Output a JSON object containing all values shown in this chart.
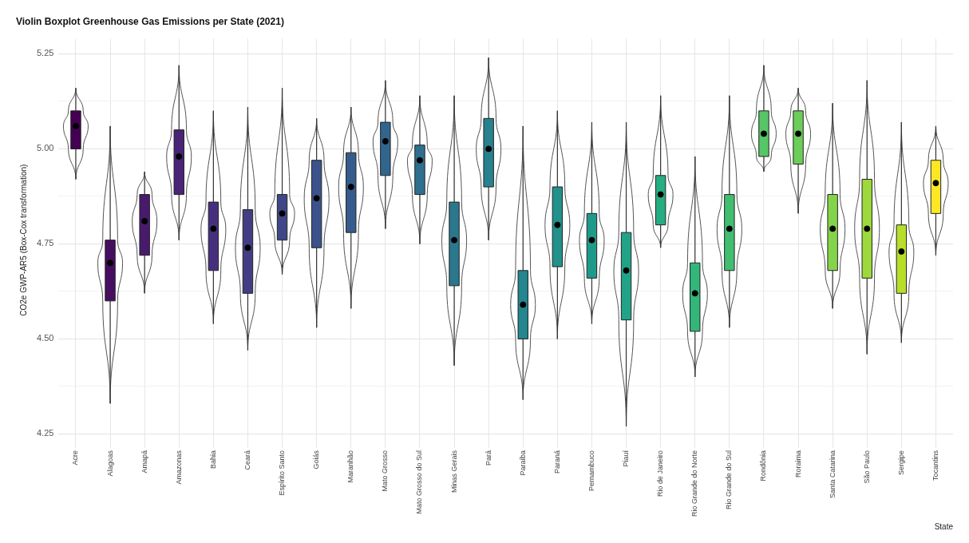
{
  "chart_data": {
    "type": "box",
    "title": "Violin Boxplot Greenhouse Gas Emissions per State (2021)",
    "xlabel": "State",
    "ylabel": "CO2e GWP-AR5 (Box-Cox transformation)",
    "categories": [
      "Acre",
      "Alagoas",
      "Amapá",
      "Amazonas",
      "Bahia",
      "Ceará",
      "Espírito Santo",
      "Goiás",
      "Maranhão",
      "Mato Grosso",
      "Mato Grosso do Sul",
      "Minas Gerais",
      "Pará",
      "Paraíba",
      "Paraná",
      "Pernambuco",
      "Piauí",
      "Rio de Janeiro",
      "Rio Grande do Norte",
      "Rio Grande do Sul",
      "Rondônia",
      "Roraima",
      "Santa Catarina",
      "São Paulo",
      "Sergipe",
      "Tocantins"
    ],
    "boxes": [
      {
        "low": 4.92,
        "q1": 5.0,
        "median": 5.06,
        "q3": 5.1,
        "high": 5.16
      },
      {
        "low": 4.33,
        "q1": 4.6,
        "median": 4.7,
        "q3": 4.76,
        "high": 5.06
      },
      {
        "low": 4.62,
        "q1": 4.72,
        "median": 4.81,
        "q3": 4.88,
        "high": 4.94
      },
      {
        "low": 4.76,
        "q1": 4.88,
        "median": 4.98,
        "q3": 5.05,
        "high": 5.22
      },
      {
        "low": 4.54,
        "q1": 4.68,
        "median": 4.79,
        "q3": 4.86,
        "high": 5.1
      },
      {
        "low": 4.47,
        "q1": 4.62,
        "median": 4.74,
        "q3": 4.84,
        "high": 5.11
      },
      {
        "low": 4.67,
        "q1": 4.76,
        "median": 4.83,
        "q3": 4.88,
        "high": 5.16
      },
      {
        "low": 4.53,
        "q1": 4.74,
        "median": 4.87,
        "q3": 4.97,
        "high": 5.08
      },
      {
        "low": 4.58,
        "q1": 4.78,
        "median": 4.9,
        "q3": 4.99,
        "high": 5.11
      },
      {
        "low": 4.79,
        "q1": 4.93,
        "median": 5.02,
        "q3": 5.07,
        "high": 5.18
      },
      {
        "low": 4.75,
        "q1": 4.88,
        "median": 4.97,
        "q3": 5.01,
        "high": 5.14
      },
      {
        "low": 4.43,
        "q1": 4.64,
        "median": 4.76,
        "q3": 4.86,
        "high": 5.14
      },
      {
        "low": 4.76,
        "q1": 4.9,
        "median": 5.0,
        "q3": 5.08,
        "high": 5.24
      },
      {
        "low": 4.34,
        "q1": 4.5,
        "median": 4.59,
        "q3": 4.68,
        "high": 5.06
      },
      {
        "low": 4.5,
        "q1": 4.69,
        "median": 4.8,
        "q3": 4.9,
        "high": 5.1
      },
      {
        "low": 4.54,
        "q1": 4.66,
        "median": 4.76,
        "q3": 4.83,
        "high": 5.07
      },
      {
        "low": 4.27,
        "q1": 4.55,
        "median": 4.68,
        "q3": 4.78,
        "high": 5.07
      },
      {
        "low": 4.74,
        "q1": 4.8,
        "median": 4.88,
        "q3": 4.93,
        "high": 5.14
      },
      {
        "low": 4.4,
        "q1": 4.52,
        "median": 4.62,
        "q3": 4.7,
        "high": 4.98
      },
      {
        "low": 4.53,
        "q1": 4.68,
        "median": 4.79,
        "q3": 4.88,
        "high": 5.14
      },
      {
        "low": 4.94,
        "q1": 4.98,
        "median": 5.04,
        "q3": 5.1,
        "high": 5.22
      },
      {
        "low": 4.83,
        "q1": 4.96,
        "median": 5.04,
        "q3": 5.1,
        "high": 5.16
      },
      {
        "low": 4.58,
        "q1": 4.68,
        "median": 4.79,
        "q3": 4.88,
        "high": 5.12
      },
      {
        "low": 4.46,
        "q1": 4.66,
        "median": 4.79,
        "q3": 4.92,
        "high": 5.18
      },
      {
        "low": 4.49,
        "q1": 4.62,
        "median": 4.73,
        "q3": 4.8,
        "high": 5.07
      },
      {
        "low": 4.72,
        "q1": 4.83,
        "median": 4.91,
        "q3": 4.97,
        "high": 5.06
      }
    ],
    "colors": [
      "#440154",
      "#470d60",
      "#481a6c",
      "#482576",
      "#46307e",
      "#433d84",
      "#3f4788",
      "#3b528b",
      "#365c8d",
      "#32658e",
      "#2e6f8e",
      "#2b788e",
      "#28818e",
      "#24868e",
      "#21918c",
      "#1f9a8a",
      "#20a386",
      "#26ad81",
      "#32b67a",
      "#42be71",
      "#56c667",
      "#6ccd5a",
      "#84d44b",
      "#9dd93b",
      "#b8de29",
      "#fde725"
    ],
    "ylim": [
      4.23,
      5.29
    ],
    "yticks": [
      4.25,
      {
        "value": 4.375,
        "label": null
      },
      {
        "value": 4.5,
        "label": "4.50"
      },
      {
        "value": 4.625,
        "label": null
      },
      4.75,
      {
        "value": 4.875,
        "label": null
      },
      {
        "value": 5,
        "label": "5.00"
      },
      {
        "value": 5.125,
        "label": null
      },
      5.25
    ],
    "grid": true
  }
}
